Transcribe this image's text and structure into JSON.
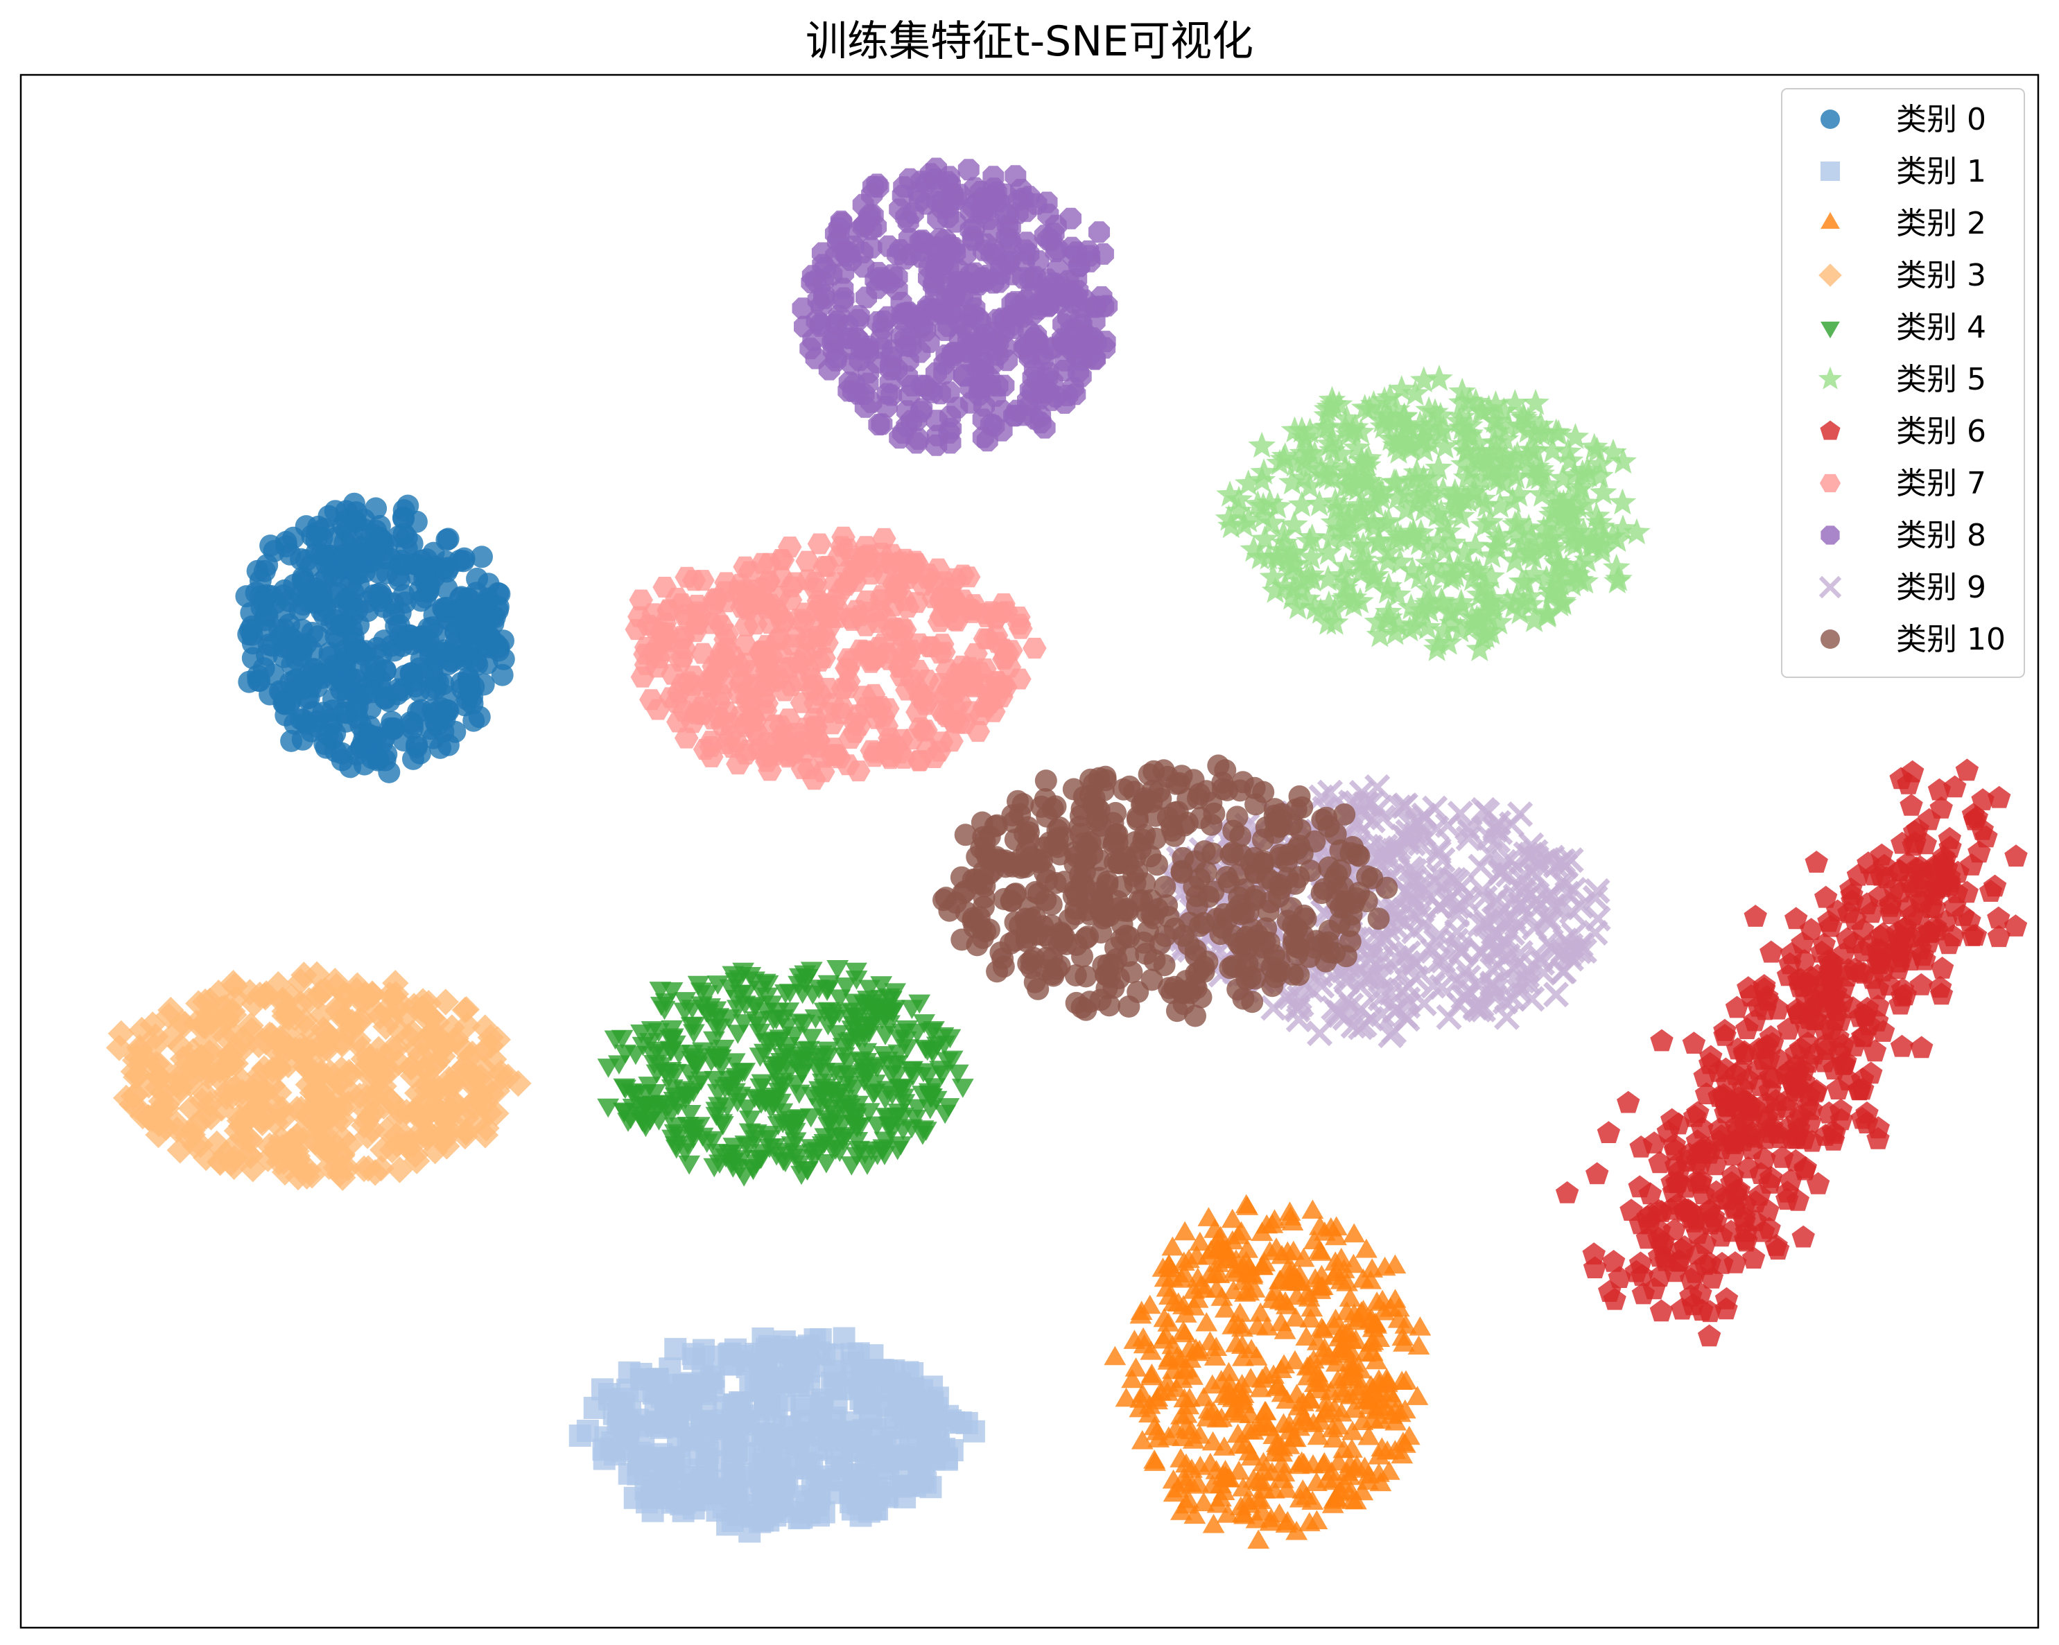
{
  "chart_data": {
    "type": "scatter",
    "title": "训练集特征t-SNE可视化",
    "xlabel": "",
    "ylabel": "",
    "grid": false,
    "ticks_visible": false,
    "legend": {
      "placement": "top-right"
    },
    "xlim": [
      0,
      100
    ],
    "ylim": [
      0,
      100
    ],
    "series": [
      {
        "name": "类别 0",
        "marker": "circle",
        "color": "#1f77b4",
        "center": [
          17.5,
          64.0
        ],
        "spread": [
          6.8,
          9.2
        ]
      },
      {
        "name": "类别 1",
        "marker": "square",
        "color": "#aec7e8",
        "center": [
          37.5,
          12.5
        ],
        "spread": [
          10.0,
          6.6
        ]
      },
      {
        "name": "类别 2",
        "marker": "triangle",
        "color": "#ff7f0e",
        "center": [
          62.0,
          16.5
        ],
        "spread": [
          7.8,
          11.5
        ]
      },
      {
        "name": "类别 3",
        "marker": "diamond",
        "color": "#ffbb78",
        "center": [
          14.5,
          35.5
        ],
        "spread": [
          10.5,
          7.0
        ]
      },
      {
        "name": "类别 4",
        "marker": "triangle-down",
        "color": "#2ca02c",
        "center": [
          38.0,
          36.0
        ],
        "spread": [
          9.5,
          7.2
        ]
      },
      {
        "name": "类别 5",
        "marker": "star",
        "color": "#98df8a",
        "center": [
          70.0,
          71.5
        ],
        "spread": [
          10.5,
          9.0
        ]
      },
      {
        "name": "类别 6",
        "marker": "pentagon",
        "color": "#d62728",
        "center": [
          88.5,
          36.5
        ],
        "spread": [
          7.5,
          14.5
        ]
      },
      {
        "name": "类别 7",
        "marker": "hexagon",
        "color": "#ff9896",
        "center": [
          40.0,
          62.5
        ],
        "spread": [
          10.5,
          8.0
        ]
      },
      {
        "name": "类别 8",
        "marker": "octagon",
        "color": "#9467bd",
        "center": [
          46.5,
          85.0
        ],
        "spread": [
          8.2,
          9.5
        ]
      },
      {
        "name": "类别 9",
        "marker": "x",
        "color": "#c5b0d5",
        "center": [
          67.5,
          46.0
        ],
        "spread": [
          11.5,
          8.2
        ]
      },
      {
        "name": "类别 10",
        "marker": "circle",
        "color": "#8c564b",
        "center": [
          56.5,
          47.5
        ],
        "spread": [
          11.5,
          8.5
        ]
      }
    ]
  }
}
